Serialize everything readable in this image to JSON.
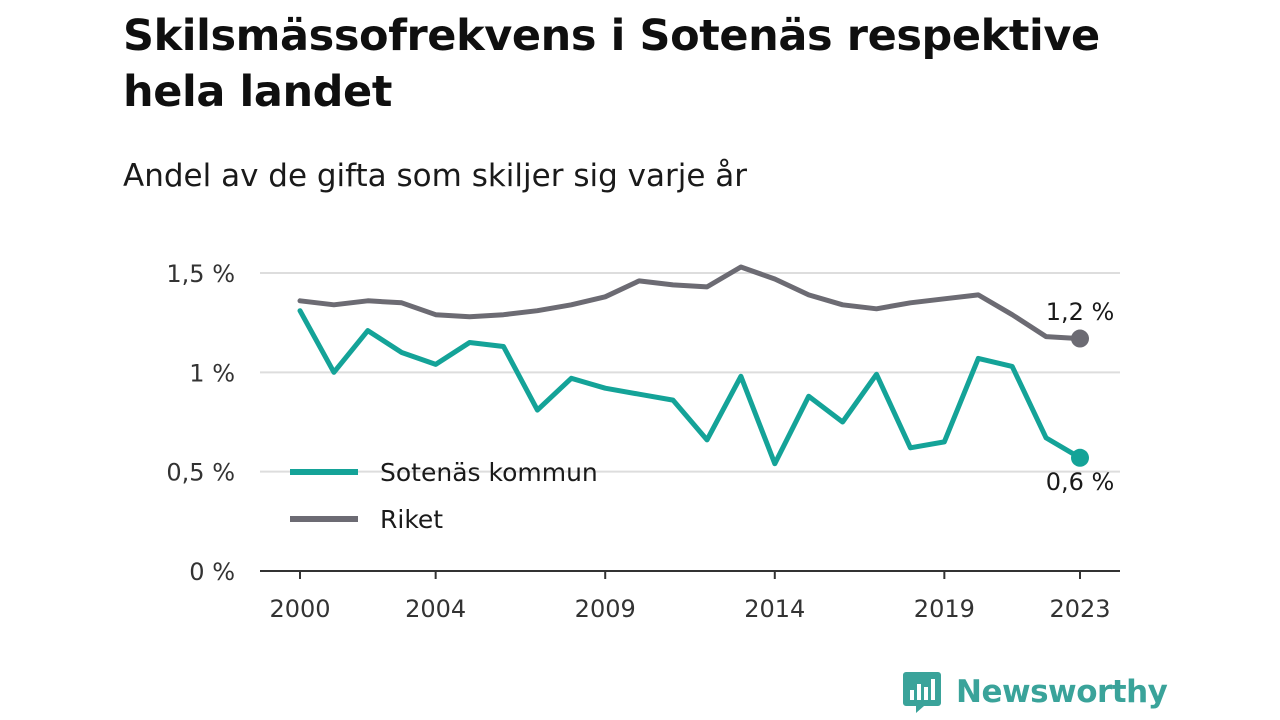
{
  "title": "Skilsmässofrekvens i Sotenäs respektive hela landet",
  "subtitle": "Andel av de gifta som skiljer sig varje år",
  "brand": "Newsworthy",
  "colors": {
    "sotenas": "#14a398",
    "riket": "#6c6b73",
    "grid": "#dddddd",
    "axis": "#333333",
    "brand": "#3aa39a"
  },
  "chart_data": {
    "type": "line",
    "x": [
      2000,
      2001,
      2002,
      2003,
      2004,
      2005,
      2006,
      2007,
      2008,
      2009,
      2010,
      2011,
      2012,
      2013,
      2014,
      2015,
      2016,
      2017,
      2018,
      2019,
      2020,
      2021,
      2022,
      2023
    ],
    "x_ticks": [
      "2000",
      "2004",
      "2009",
      "2014",
      "2019",
      "2023"
    ],
    "y_ticks": [
      "0 %",
      "0,5 %",
      "1 %",
      "1,5 %"
    ],
    "ylim": [
      0,
      1.5
    ],
    "grid": true,
    "legend_position": "bottom-left",
    "series": [
      {
        "name": "Sotenäs kommun",
        "color": "#14a398",
        "values": [
          1.31,
          1.0,
          1.21,
          1.1,
          1.04,
          1.15,
          1.13,
          0.81,
          0.97,
          0.92,
          0.89,
          0.86,
          0.66,
          0.98,
          0.54,
          0.88,
          0.75,
          0.99,
          0.62,
          0.65,
          1.07,
          1.03,
          0.67,
          0.57
        ],
        "end_label": "0,6 %"
      },
      {
        "name": "Riket",
        "color": "#6c6b73",
        "values": [
          1.36,
          1.34,
          1.36,
          1.35,
          1.29,
          1.28,
          1.29,
          1.31,
          1.34,
          1.38,
          1.46,
          1.44,
          1.43,
          1.53,
          1.47,
          1.39,
          1.34,
          1.32,
          1.35,
          1.37,
          1.39,
          1.29,
          1.18,
          1.17
        ],
        "end_label": "1,2 %"
      }
    ]
  }
}
